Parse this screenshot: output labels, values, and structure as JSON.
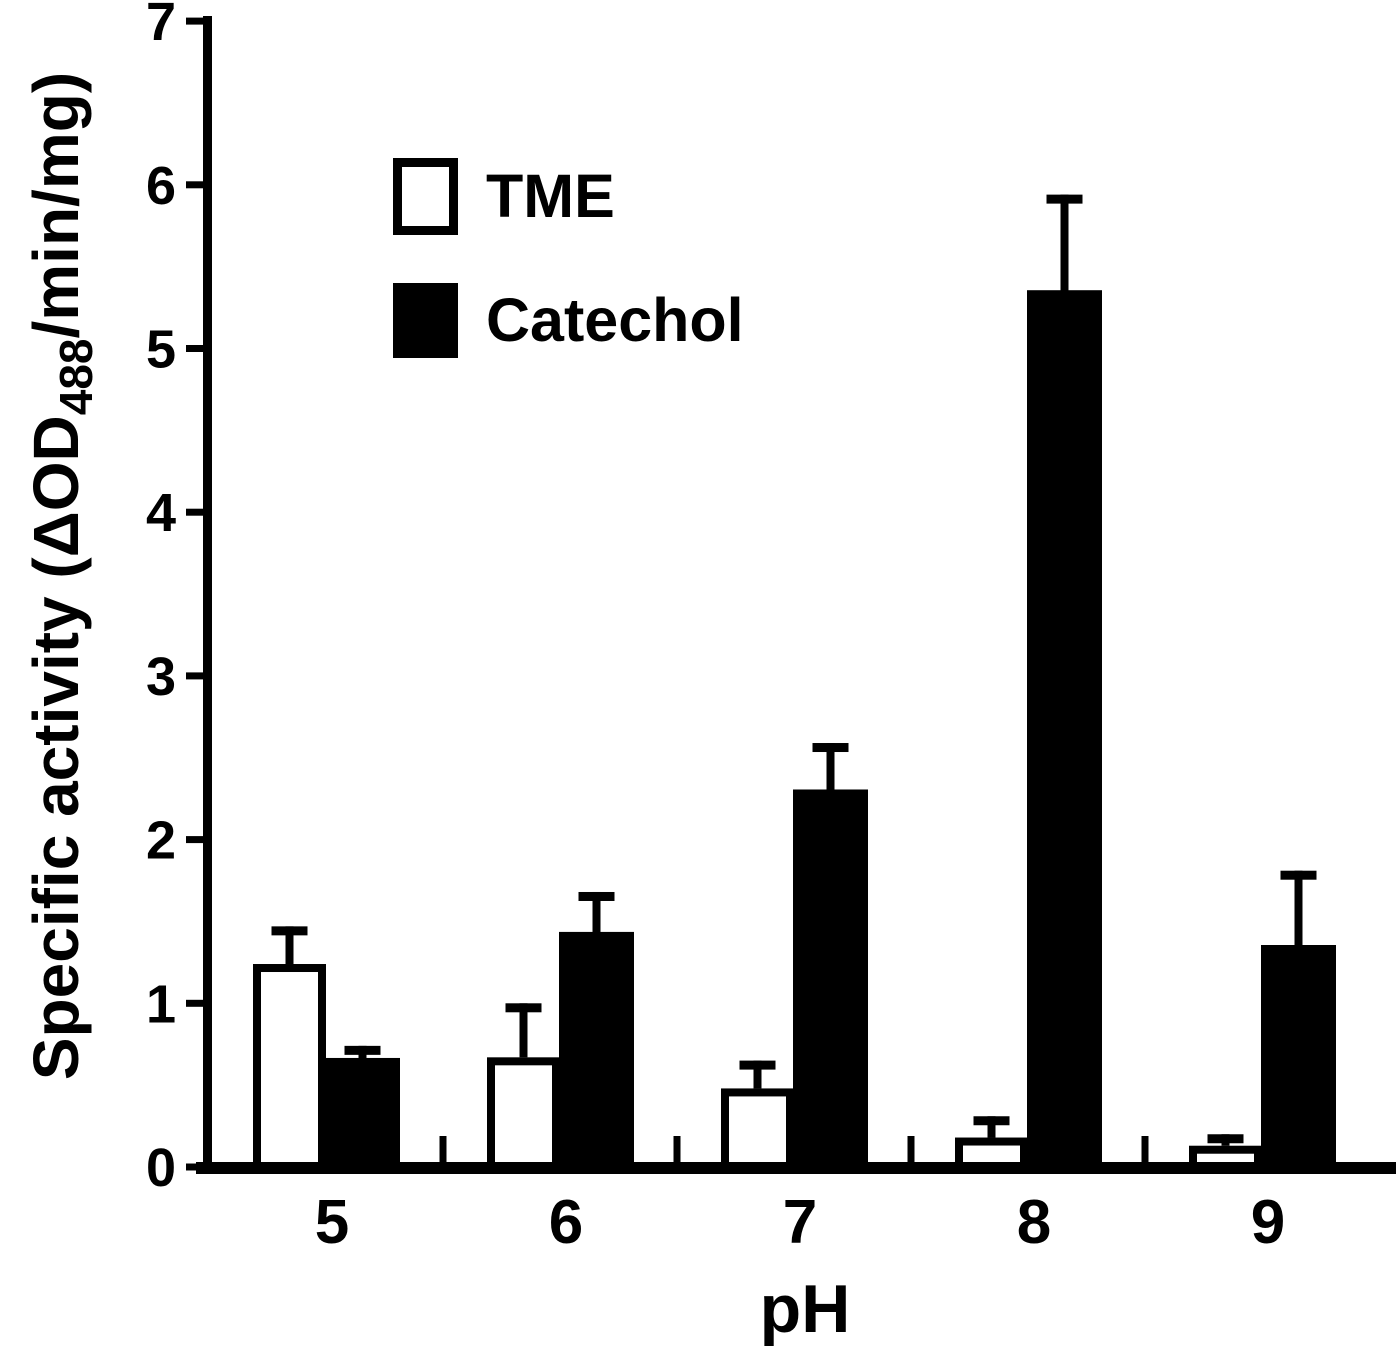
{
  "chart_data": {
    "type": "bar",
    "title": "",
    "xlabel": "pH",
    "ylabel": {
      "pre": "Specific activity (ΔOD",
      "sub": "488",
      "post": "/min/mg)"
    },
    "categories": [
      "5",
      "6",
      "7",
      "8",
      "9"
    ],
    "series": [
      {
        "name": "TME",
        "fill": "#ffffff",
        "outline": "#000000",
        "values": [
          1.24,
          0.67,
          0.48,
          0.18,
          0.13
        ],
        "errors_plus": [
          0.23,
          0.33,
          0.17,
          0.13,
          0.07
        ]
      },
      {
        "name": "Catechol",
        "fill": "#000000",
        "outline": "#000000",
        "values": [
          0.66,
          1.43,
          2.3,
          5.35,
          1.35
        ],
        "errors_plus": [
          0.08,
          0.25,
          0.29,
          0.59,
          0.46
        ]
      }
    ],
    "ylim": [
      0,
      7
    ],
    "yticks": [
      0,
      1,
      2,
      3,
      4,
      5,
      6,
      7
    ],
    "grid": false,
    "legend_position": "upper-left-inside",
    "axis_color": "#000000",
    "error_bar_style": "upper-cap"
  }
}
